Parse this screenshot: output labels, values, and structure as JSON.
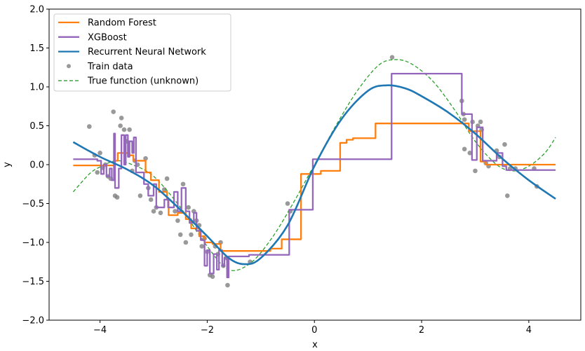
{
  "chart_data": {
    "type": "line",
    "title": "",
    "xlabel": "x",
    "ylabel": "y",
    "xlim": [
      -4.95,
      4.97
    ],
    "ylim": [
      -2.0,
      2.0
    ],
    "xticks": [
      -4,
      -2,
      0,
      2,
      4
    ],
    "xtick_labels": [
      "−4",
      "−2",
      "0",
      "2",
      "4"
    ],
    "yticks": [
      -2.0,
      -1.5,
      -1.0,
      -0.5,
      0.0,
      0.5,
      1.0,
      1.5,
      2.0
    ],
    "ytick_labels": [
      "−2.0",
      "−1.5",
      "−1.0",
      "−0.5",
      "0.0",
      "0.5",
      "1.0",
      "1.5",
      "2.0"
    ],
    "grid": false,
    "legend_position": "top-left",
    "legend": [
      {
        "label": "Random Forest",
        "kind": "line",
        "color": "#ff7f0e"
      },
      {
        "label": "XGBoost",
        "kind": "line",
        "color": "#9467bd"
      },
      {
        "label": "Recurrent Neural Network",
        "kind": "line",
        "color": "#1f77b4"
      },
      {
        "label": "Train data",
        "kind": "marker",
        "color": "#808080"
      },
      {
        "label": "True function (unknown)",
        "kind": "dashed",
        "color": "#2ca02c"
      }
    ],
    "series": [
      {
        "name": "Random Forest",
        "style": "step",
        "color": "#ff7f0e",
        "points": [
          [
            -4.5,
            -0.01
          ],
          [
            -3.72,
            0.05
          ],
          [
            -3.67,
            0.15
          ],
          [
            -3.45,
            0.12
          ],
          [
            -3.38,
            0.05
          ],
          [
            -3.15,
            -0.1
          ],
          [
            -3.05,
            -0.2
          ],
          [
            -2.9,
            -0.35
          ],
          [
            -2.75,
            -0.45
          ],
          [
            -2.72,
            -0.65
          ],
          [
            -2.55,
            -0.62
          ],
          [
            -2.4,
            -0.7
          ],
          [
            -2.3,
            -0.82
          ],
          [
            -2.15,
            -0.92
          ],
          [
            -2.05,
            -1.0
          ],
          [
            -1.9,
            -1.02
          ],
          [
            -1.75,
            -1.11
          ],
          [
            -0.82,
            -1.08
          ],
          [
            -0.61,
            -0.96
          ],
          [
            -0.25,
            -0.12
          ],
          [
            0.12,
            -0.08
          ],
          [
            0.48,
            0.28
          ],
          [
            0.6,
            0.32
          ],
          [
            0.72,
            0.34
          ],
          [
            1.14,
            0.53
          ],
          [
            2.88,
            0.43
          ],
          [
            3.1,
            0.04
          ],
          [
            3.2,
            0.0
          ],
          [
            4.5,
            0.0
          ]
        ]
      },
      {
        "name": "XGBoost",
        "style": "step",
        "color": "#9467bd",
        "points": [
          [
            -4.5,
            0.07
          ],
          [
            -4.05,
            0.05
          ],
          [
            -3.98,
            -0.12
          ],
          [
            -3.93,
            0.0
          ],
          [
            -3.88,
            -0.15
          ],
          [
            -3.82,
            -0.05
          ],
          [
            -3.78,
            -0.2
          ],
          [
            -3.74,
            0.4
          ],
          [
            -3.72,
            -0.3
          ],
          [
            -3.65,
            -0.05
          ],
          [
            -3.6,
            0.38
          ],
          [
            -3.55,
            0.0
          ],
          [
            -3.52,
            0.38
          ],
          [
            -3.48,
            0.1
          ],
          [
            -3.45,
            0.3
          ],
          [
            -3.4,
            0.15
          ],
          [
            -3.37,
            0.35
          ],
          [
            -3.33,
            -0.1
          ],
          [
            -3.18,
            -0.25
          ],
          [
            -3.1,
            -0.4
          ],
          [
            -3.0,
            -0.25
          ],
          [
            -2.95,
            -0.55
          ],
          [
            -2.8,
            -0.45
          ],
          [
            -2.73,
            -0.55
          ],
          [
            -2.62,
            -0.35
          ],
          [
            -2.55,
            -0.6
          ],
          [
            -2.48,
            -0.3
          ],
          [
            -2.4,
            -0.6
          ],
          [
            -2.33,
            -0.75
          ],
          [
            -2.25,
            -0.62
          ],
          [
            -2.2,
            -0.85
          ],
          [
            -2.12,
            -0.97
          ],
          [
            -2.05,
            -1.3
          ],
          [
            -2.0,
            -1.1
          ],
          [
            -1.95,
            -1.4
          ],
          [
            -1.88,
            -1.15
          ],
          [
            -1.82,
            -1.35
          ],
          [
            -1.78,
            -1.1
          ],
          [
            -1.72,
            -1.3
          ],
          [
            -1.68,
            -1.2
          ],
          [
            -1.63,
            -1.45
          ],
          [
            -1.6,
            -1.18
          ],
          [
            -1.22,
            -1.16
          ],
          [
            -0.47,
            -0.58
          ],
          [
            -0.03,
            0.07
          ],
          [
            1.44,
            1.17
          ],
          [
            2.75,
            0.65
          ],
          [
            2.94,
            0.06
          ],
          [
            3.03,
            0.48
          ],
          [
            3.14,
            0.05
          ],
          [
            3.4,
            0.15
          ],
          [
            3.51,
            -0.02
          ],
          [
            3.58,
            -0.07
          ],
          [
            4.5,
            -0.07
          ]
        ]
      },
      {
        "name": "Recurrent Neural Network",
        "style": "smooth",
        "color": "#1f77b4",
        "points": [
          [
            -4.5,
            0.29
          ],
          [
            -4.0,
            0.1
          ],
          [
            -3.5,
            -0.06
          ],
          [
            -3.0,
            -0.27
          ],
          [
            -2.5,
            -0.58
          ],
          [
            -2.0,
            -0.92
          ],
          [
            -1.6,
            -1.2
          ],
          [
            -1.3,
            -1.28
          ],
          [
            -1.0,
            -1.2
          ],
          [
            -0.5,
            -0.78
          ],
          [
            0.0,
            -0.02
          ],
          [
            0.5,
            0.58
          ],
          [
            1.0,
            0.95
          ],
          [
            1.35,
            1.02
          ],
          [
            1.7,
            0.98
          ],
          [
            2.0,
            0.88
          ],
          [
            2.5,
            0.67
          ],
          [
            3.0,
            0.4
          ],
          [
            3.5,
            0.08
          ],
          [
            4.0,
            -0.2
          ],
          [
            4.5,
            -0.44
          ]
        ]
      },
      {
        "name": "True function (unknown)",
        "style": "dashed",
        "color": "#2ca02c",
        "points": [
          [
            -4.5,
            -0.35
          ],
          [
            -4.2,
            -0.12
          ],
          [
            -4.0,
            -0.03
          ],
          [
            -3.7,
            0.05
          ],
          [
            -3.4,
            0.0
          ],
          [
            -3.0,
            -0.15
          ],
          [
            -2.5,
            -0.55
          ],
          [
            -2.0,
            -1.05
          ],
          [
            -1.6,
            -1.35
          ],
          [
            -1.2,
            -1.27
          ],
          [
            -0.8,
            -0.95
          ],
          [
            -0.4,
            -0.5
          ],
          [
            0.0,
            0.0
          ],
          [
            0.4,
            0.5
          ],
          [
            0.8,
            0.95
          ],
          [
            1.2,
            1.28
          ],
          [
            1.5,
            1.35
          ],
          [
            1.8,
            1.3
          ],
          [
            2.2,
            1.08
          ],
          [
            2.6,
            0.72
          ],
          [
            3.0,
            0.3
          ],
          [
            3.4,
            0.0
          ],
          [
            3.7,
            -0.08
          ],
          [
            4.0,
            -0.02
          ],
          [
            4.3,
            0.15
          ],
          [
            4.5,
            0.35
          ]
        ]
      }
    ],
    "train_data": {
      "name": "Train data",
      "color": "#808080",
      "points": [
        [
          -4.2,
          0.49
        ],
        [
          -4.1,
          0.12
        ],
        [
          -4.05,
          -0.1
        ],
        [
          -4.0,
          0.15
        ],
        [
          -3.95,
          -0.04
        ],
        [
          -3.9,
          0.0
        ],
        [
          -3.85,
          -0.15
        ],
        [
          -3.8,
          -0.18
        ],
        [
          -3.75,
          0.68
        ],
        [
          -3.72,
          -0.4
        ],
        [
          -3.68,
          -0.42
        ],
        [
          -3.62,
          0.5
        ],
        [
          -3.6,
          0.6
        ],
        [
          -3.55,
          0.45
        ],
        [
          -3.5,
          0.3
        ],
        [
          -3.45,
          0.45
        ],
        [
          -3.4,
          -0.08
        ],
        [
          -3.35,
          0.05
        ],
        [
          -3.3,
          0.0
        ],
        [
          -3.25,
          -0.4
        ],
        [
          -3.15,
          0.08
        ],
        [
          -3.1,
          -0.3
        ],
        [
          -3.05,
          -0.45
        ],
        [
          -3.0,
          -0.6
        ],
        [
          -2.95,
          -0.55
        ],
        [
          -2.87,
          -0.62
        ],
        [
          -2.8,
          -0.32
        ],
        [
          -2.75,
          -0.18
        ],
        [
          -2.6,
          -0.6
        ],
        [
          -2.55,
          -0.72
        ],
        [
          -2.5,
          -0.9
        ],
        [
          -2.45,
          -0.25
        ],
        [
          -2.4,
          -1.0
        ],
        [
          -2.35,
          -0.55
        ],
        [
          -2.3,
          -0.9
        ],
        [
          -2.25,
          -0.6
        ],
        [
          -2.2,
          -0.72
        ],
        [
          -2.15,
          -0.78
        ],
        [
          -2.1,
          -1.05
        ],
        [
          -2.05,
          -0.95
        ],
        [
          -2.0,
          -1.12
        ],
        [
          -1.95,
          -1.42
        ],
        [
          -1.9,
          -1.44
        ],
        [
          -1.85,
          -1.05
        ],
        [
          -1.8,
          -1.15
        ],
        [
          -1.75,
          -1.0
        ],
        [
          -1.7,
          -1.3
        ],
        [
          -1.65,
          -1.2
        ],
        [
          -1.62,
          -1.55
        ],
        [
          -1.2,
          -1.25
        ],
        [
          -0.5,
          -0.5
        ],
        [
          -0.45,
          -0.6
        ],
        [
          1.45,
          1.38
        ],
        [
          2.75,
          0.82
        ],
        [
          2.78,
          0.65
        ],
        [
          2.8,
          0.58
        ],
        [
          2.8,
          0.2
        ],
        [
          2.9,
          0.15
        ],
        [
          2.95,
          0.55
        ],
        [
          3.0,
          -0.08
        ],
        [
          3.05,
          0.5
        ],
        [
          3.1,
          0.55
        ],
        [
          3.12,
          0.45
        ],
        [
          3.2,
          0.02
        ],
        [
          3.25,
          -0.02
        ],
        [
          3.4,
          0.18
        ],
        [
          3.45,
          0.1
        ],
        [
          3.55,
          0.26
        ],
        [
          3.6,
          -0.4
        ],
        [
          3.65,
          -0.05
        ],
        [
          3.75,
          -0.05
        ],
        [
          4.1,
          -0.05
        ],
        [
          4.15,
          -0.28
        ]
      ]
    }
  }
}
